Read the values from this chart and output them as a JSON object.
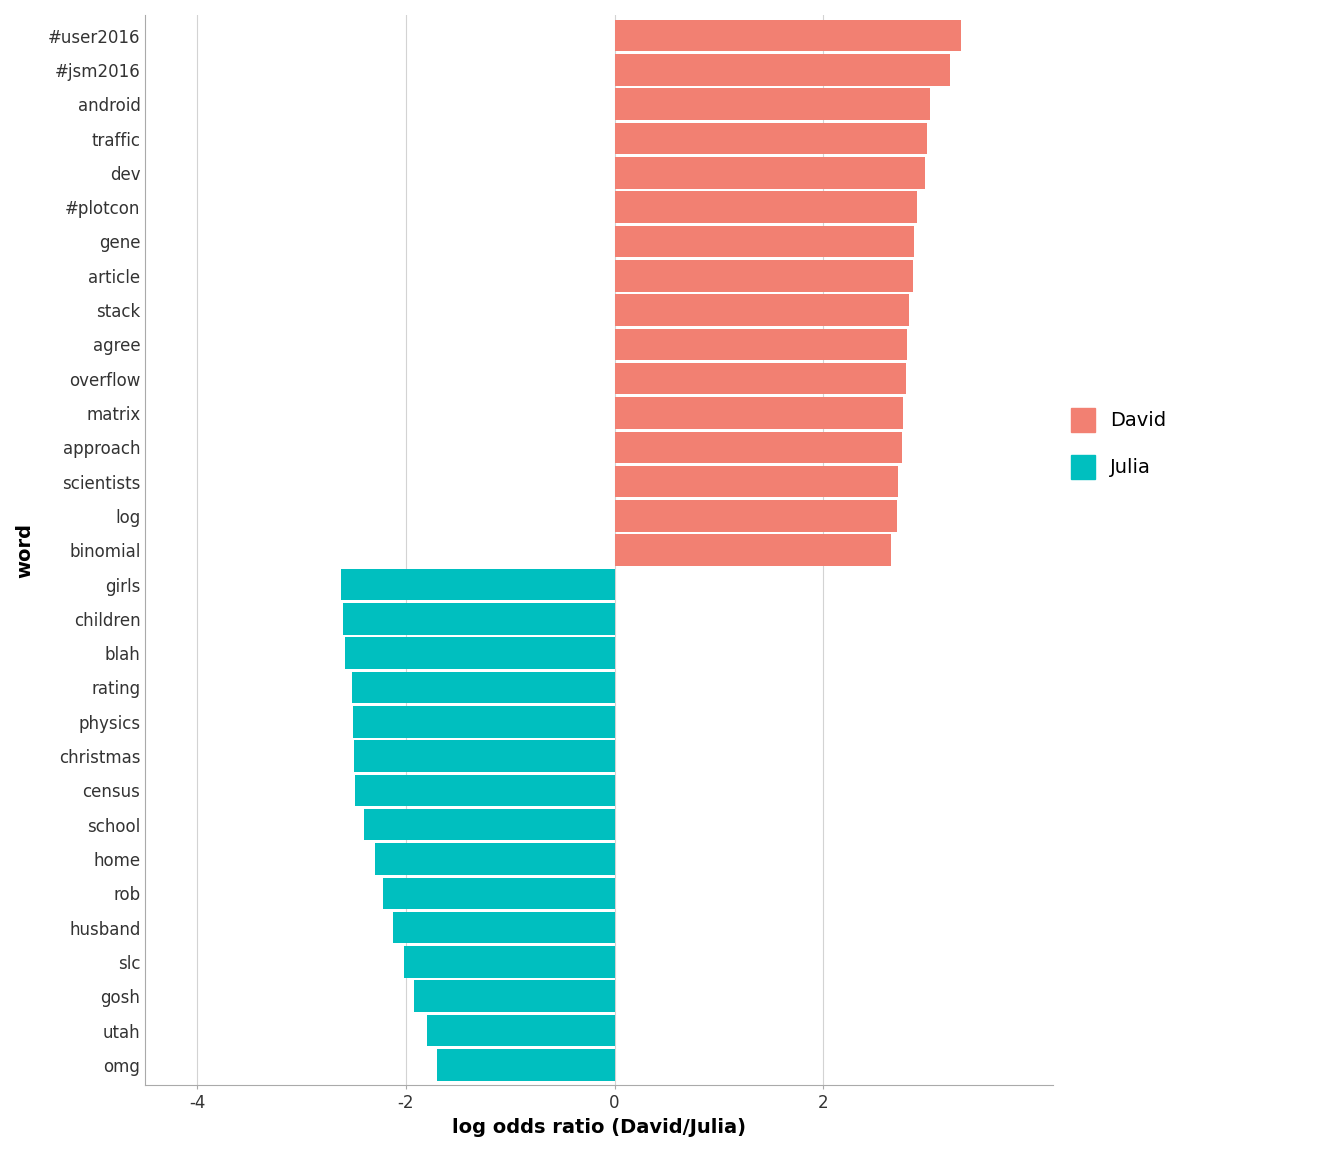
{
  "words": [
    "#user2016",
    "#jsm2016",
    "android",
    "traffic",
    "dev",
    "#plotcon",
    "gene",
    "article",
    "stack",
    "agree",
    "overflow",
    "matrix",
    "approach",
    "scientists",
    "log",
    "binomial",
    "girls",
    "children",
    "blah",
    "rating",
    "physics",
    "christmas",
    "census",
    "school",
    "home",
    "rob",
    "husband",
    "slc",
    "gosh",
    "utah",
    "omg"
  ],
  "values": [
    3.32,
    3.22,
    3.02,
    3.0,
    2.98,
    2.9,
    2.87,
    2.86,
    2.82,
    2.8,
    2.79,
    2.77,
    2.76,
    2.72,
    2.71,
    2.65,
    -2.62,
    -2.6,
    -2.58,
    -2.52,
    -2.51,
    -2.5,
    -2.49,
    -2.4,
    -2.3,
    -2.22,
    -2.12,
    -2.02,
    -1.92,
    -1.8,
    -1.7
  ],
  "david_color": "#F28072",
  "julia_color": "#00BFBF",
  "background_color": "#FFFFFF",
  "grid_color": "#D3D3D3",
  "xlabel": "log odds ratio (David/Julia)",
  "ylabel": "word",
  "xlim": [
    -4.5,
    4.2
  ],
  "xticks": [
    -4,
    -2,
    0,
    2
  ],
  "axis_label_fontsize": 14,
  "tick_fontsize": 12,
  "legend_labels": [
    "David",
    "Julia"
  ],
  "legend_colors": [
    "#F28072",
    "#00BFBF"
  ],
  "bar_height": 0.92
}
